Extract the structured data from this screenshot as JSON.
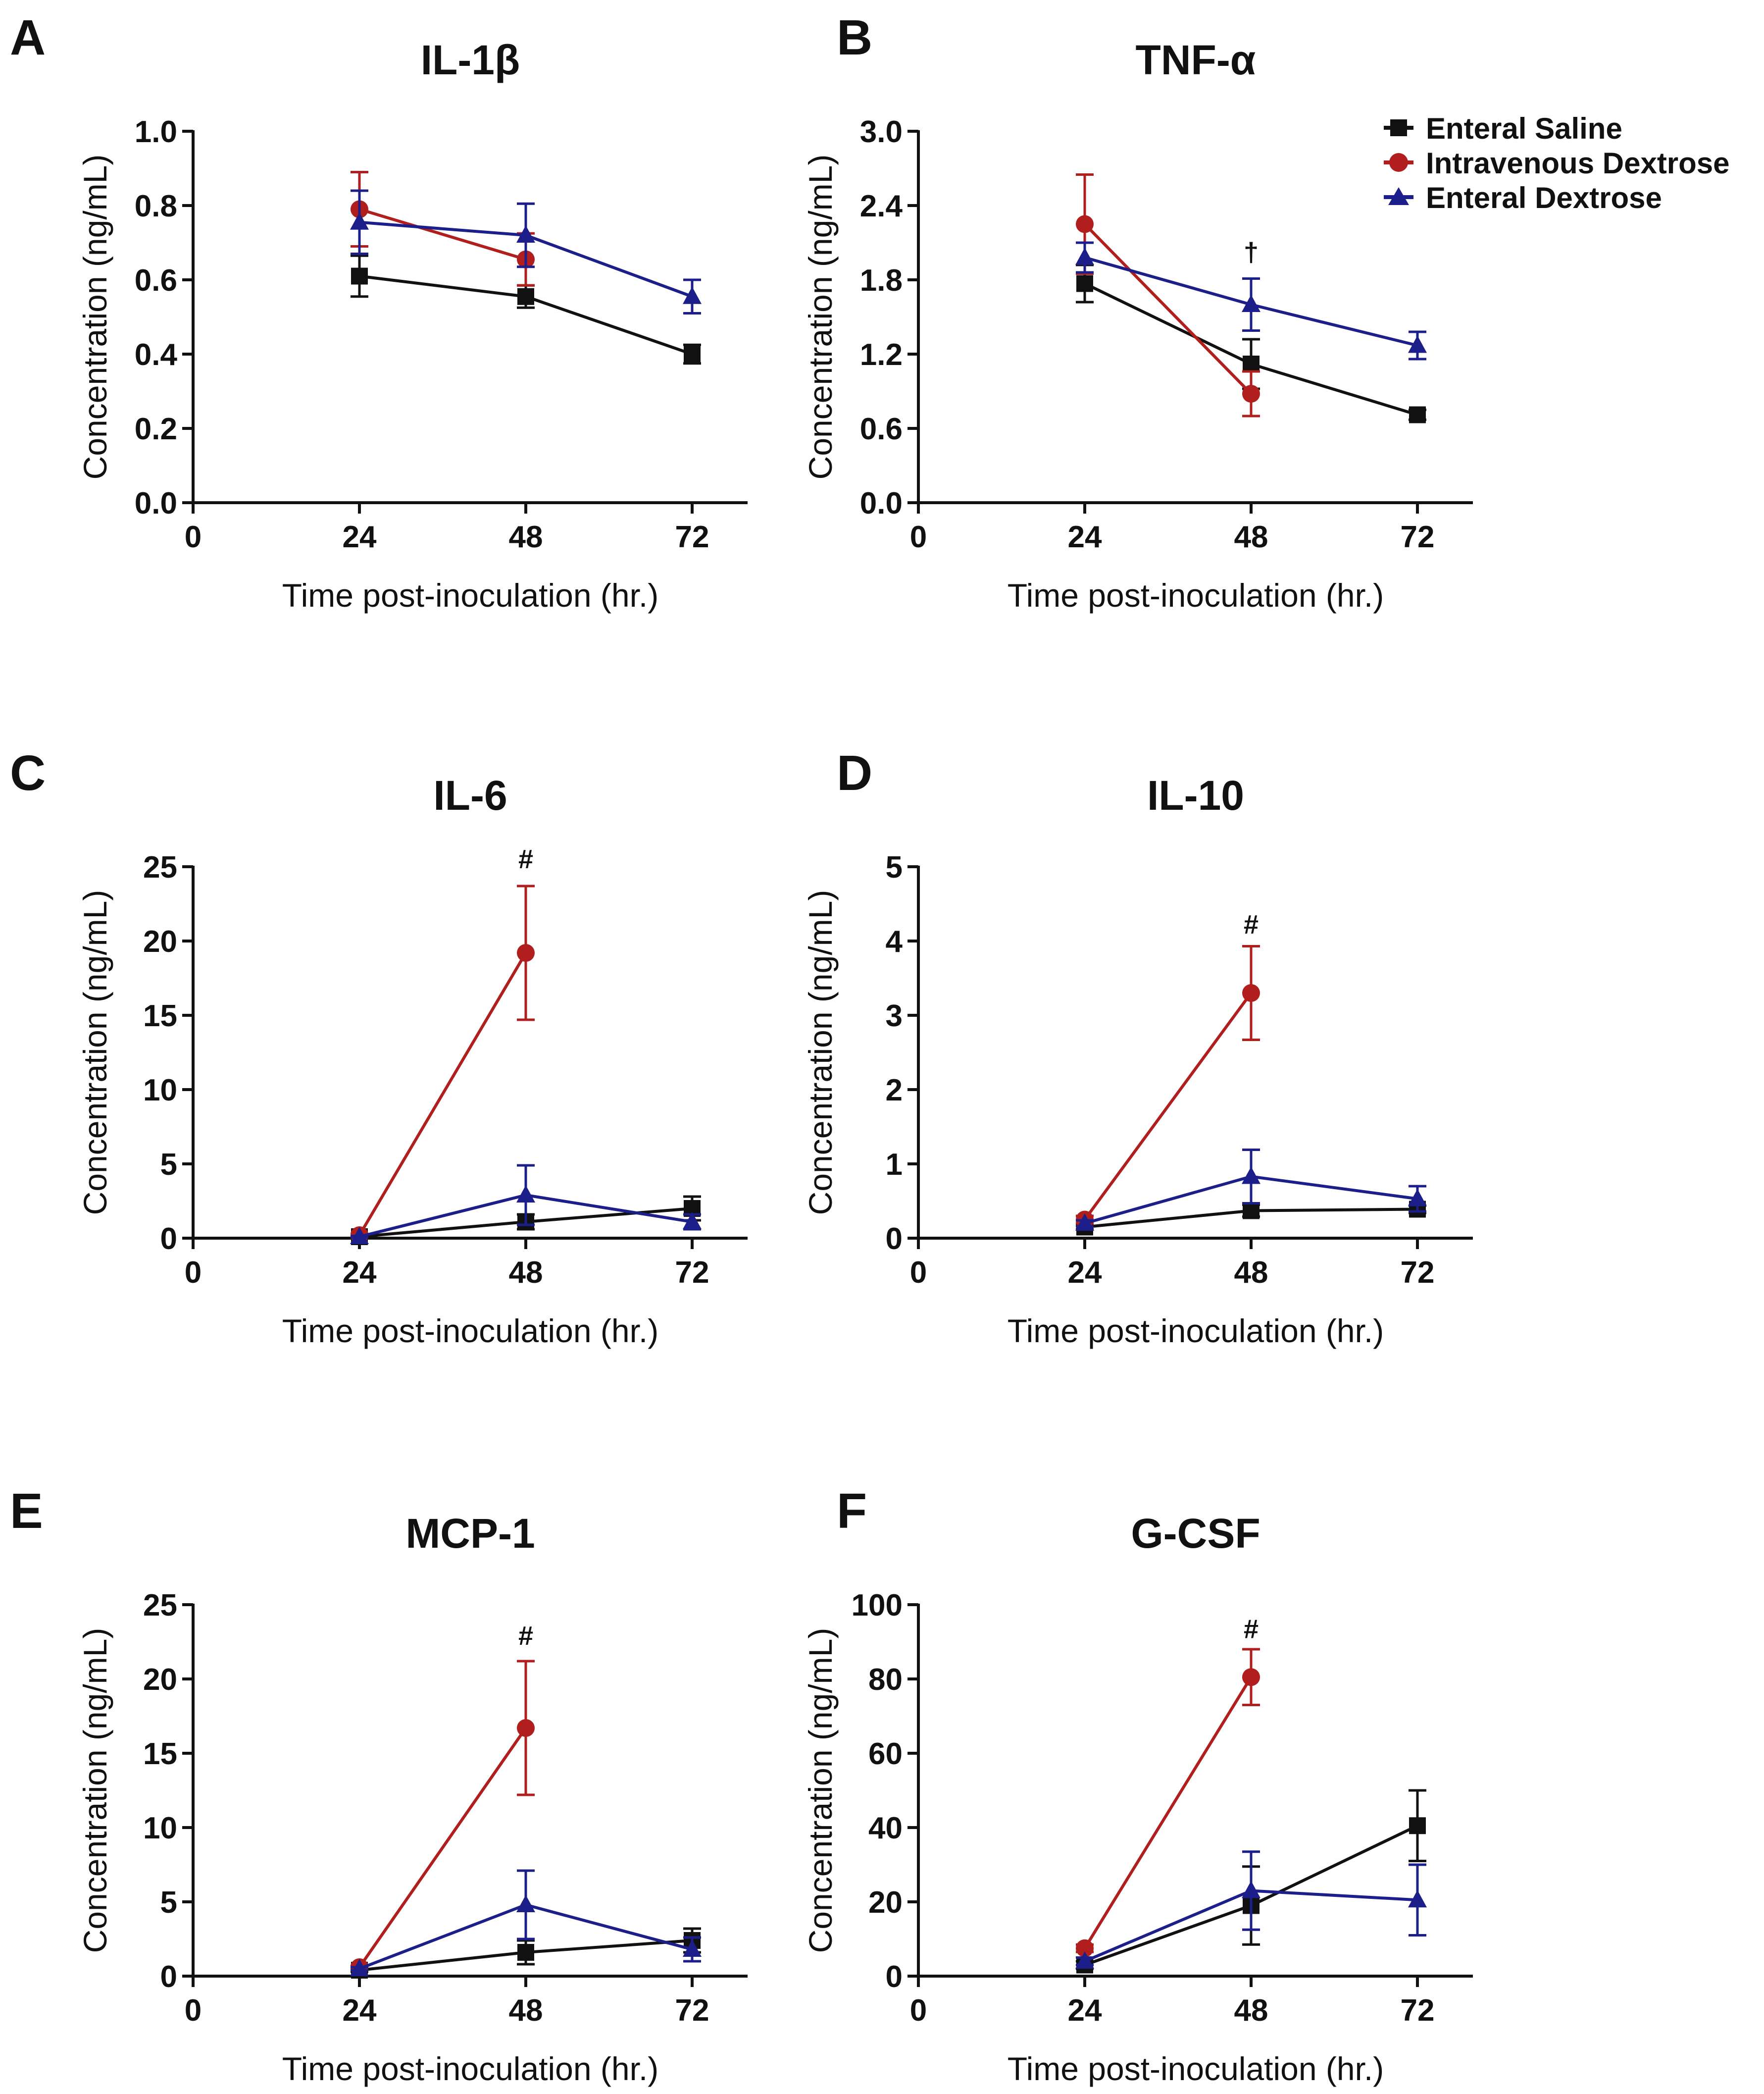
{
  "legend": [
    {
      "name": "Enteral Saline",
      "color": "#111111",
      "marker": "square"
    },
    {
      "name": "Intravenous Dextrose",
      "color": "#b01e1e",
      "marker": "circle"
    },
    {
      "name": "Enteral Dextrose",
      "color": "#1c1f8a",
      "marker": "triangle"
    }
  ],
  "chart_data": [
    {
      "panel": "A",
      "type": "line",
      "title": "IL-1β",
      "xlabel": "Time post-inoculation (hr.)",
      "ylabel": "Concentration (ng/mL)",
      "xlim": [
        0,
        80
      ],
      "xticks": [
        0,
        24,
        48,
        72
      ],
      "ylim": [
        0,
        1.0
      ],
      "yticks": [
        0.0,
        0.2,
        0.4,
        0.6,
        0.8,
        1.0
      ],
      "ytick_labels": [
        "0.0",
        "0.2",
        "0.4",
        "0.6",
        "0.8",
        "1.0"
      ],
      "series": [
        {
          "name": "Enteral Saline",
          "x": [
            24,
            48,
            72
          ],
          "values": [
            0.61,
            0.555,
            0.4
          ],
          "err": [
            0.055,
            0.03,
            0.025
          ]
        },
        {
          "name": "Intravenous Dextrose",
          "x": [
            24,
            48
          ],
          "values": [
            0.79,
            0.655
          ],
          "err": [
            0.1,
            0.07
          ]
        },
        {
          "name": "Enteral Dextrose",
          "x": [
            24,
            48,
            72
          ],
          "values": [
            0.755,
            0.72,
            0.555
          ],
          "err": [
            0.085,
            0.085,
            0.045
          ]
        }
      ],
      "annotations": []
    },
    {
      "panel": "B",
      "type": "line",
      "title": "TNF-α",
      "xlabel": "Time post-inoculation (hr.)",
      "ylabel": "Concentration (ng/mL)",
      "xlim": [
        0,
        80
      ],
      "xticks": [
        0,
        24,
        48,
        72
      ],
      "ylim": [
        0,
        3.0
      ],
      "yticks": [
        0.0,
        0.6,
        1.2,
        1.8,
        2.4,
        3.0
      ],
      "ytick_labels": [
        "0.0",
        "0.6",
        "1.2",
        "1.8",
        "2.4",
        "3.0"
      ],
      "series": [
        {
          "name": "Enteral Saline",
          "x": [
            24,
            48,
            72
          ],
          "values": [
            1.77,
            1.12,
            0.71
          ],
          "err": [
            0.15,
            0.2,
            0.04
          ]
        },
        {
          "name": "Intravenous Dextrose",
          "x": [
            24,
            48
          ],
          "values": [
            2.25,
            0.88
          ],
          "err": [
            0.4,
            0.18
          ]
        },
        {
          "name": "Enteral Dextrose",
          "x": [
            24,
            48,
            72
          ],
          "values": [
            1.98,
            1.6,
            1.27
          ],
          "err": [
            0.12,
            0.21,
            0.11
          ]
        }
      ],
      "annotations": [
        {
          "text": "†",
          "x": 48,
          "y": 1.95
        }
      ]
    },
    {
      "panel": "C",
      "type": "line",
      "title": "IL-6",
      "xlabel": "Time post-inoculation (hr.)",
      "ylabel": "Concentration (ng/mL)",
      "xlim": [
        0,
        80
      ],
      "xticks": [
        0,
        24,
        48,
        72
      ],
      "ylim": [
        0,
        25
      ],
      "yticks": [
        0,
        5,
        10,
        15,
        20,
        25
      ],
      "ytick_labels": [
        "0",
        "5",
        "10",
        "15",
        "20",
        "25"
      ],
      "series": [
        {
          "name": "Enteral Saline",
          "x": [
            24,
            48,
            72
          ],
          "values": [
            0.1,
            1.1,
            2.0
          ],
          "err": [
            0.05,
            0.5,
            0.8
          ]
        },
        {
          "name": "Intravenous Dextrose",
          "x": [
            24,
            48
          ],
          "values": [
            0.2,
            19.2
          ],
          "err": [
            0.1,
            4.5
          ]
        },
        {
          "name": "Enteral Dextrose",
          "x": [
            24,
            48,
            72
          ],
          "values": [
            0.1,
            2.9,
            1.1
          ],
          "err": [
            0.05,
            2.0,
            0.5
          ]
        }
      ],
      "annotations": [
        {
          "text": "#",
          "x": 48,
          "y": 24.9
        }
      ]
    },
    {
      "panel": "D",
      "type": "line",
      "title": "IL-10",
      "xlabel": "Time post-inoculation (hr.)",
      "ylabel": "Concentration (ng/mL)",
      "xlim": [
        0,
        80
      ],
      "xticks": [
        0,
        24,
        48,
        72
      ],
      "ylim": [
        0,
        5
      ],
      "yticks": [
        0,
        1,
        2,
        3,
        4,
        5
      ],
      "ytick_labels": [
        "0",
        "1",
        "2",
        "3",
        "4",
        "5"
      ],
      "series": [
        {
          "name": "Enteral Saline",
          "x": [
            24,
            48,
            72
          ],
          "values": [
            0.15,
            0.37,
            0.39
          ],
          "err": [
            0.03,
            0.08,
            0.05
          ]
        },
        {
          "name": "Intravenous Dextrose",
          "x": [
            24,
            48
          ],
          "values": [
            0.25,
            3.3
          ],
          "err": [
            0.05,
            0.63
          ]
        },
        {
          "name": "Enteral Dextrose",
          "x": [
            24,
            48,
            72
          ],
          "values": [
            0.2,
            0.83,
            0.53
          ],
          "err": [
            0.04,
            0.36,
            0.17
          ]
        }
      ],
      "annotations": [
        {
          "text": "#",
          "x": 48,
          "y": 4.1
        }
      ]
    },
    {
      "panel": "E",
      "type": "line",
      "title": "MCP-1",
      "xlabel": "Time post-inoculation (hr.)",
      "ylabel": "Concentration (ng/mL)",
      "xlim": [
        0,
        80
      ],
      "xticks": [
        0,
        24,
        48,
        72
      ],
      "ylim": [
        0,
        25
      ],
      "yticks": [
        0,
        5,
        10,
        15,
        20,
        25
      ],
      "ytick_labels": [
        "0",
        "5",
        "10",
        "15",
        "20",
        "25"
      ],
      "series": [
        {
          "name": "Enteral Saline",
          "x": [
            24,
            48,
            72
          ],
          "values": [
            0.4,
            1.6,
            2.4
          ],
          "err": [
            0.1,
            0.8,
            0.8
          ]
        },
        {
          "name": "Intravenous Dextrose",
          "x": [
            24,
            48
          ],
          "values": [
            0.6,
            16.7
          ],
          "err": [
            0.1,
            4.5
          ]
        },
        {
          "name": "Enteral Dextrose",
          "x": [
            24,
            48,
            72
          ],
          "values": [
            0.5,
            4.8,
            1.8
          ],
          "err": [
            0.1,
            2.3,
            0.8
          ]
        }
      ],
      "annotations": [
        {
          "text": "#",
          "x": 48,
          "y": 22.3
        }
      ]
    },
    {
      "panel": "F",
      "type": "line",
      "title": "G-CSF",
      "xlabel": "Time post-inoculation (hr.)",
      "ylabel": "Concentration (ng/mL)",
      "xlim": [
        0,
        80
      ],
      "xticks": [
        0,
        24,
        48,
        72
      ],
      "ylim": [
        0,
        100
      ],
      "yticks": [
        0,
        20,
        40,
        60,
        80,
        100
      ],
      "ytick_labels": [
        "0",
        "20",
        "40",
        "60",
        "80",
        "100"
      ],
      "series": [
        {
          "name": "Enteral Saline",
          "x": [
            24,
            48,
            72
          ],
          "values": [
            3.0,
            19.0,
            40.5
          ],
          "err": [
            1.0,
            10.5,
            9.5
          ]
        },
        {
          "name": "Intravenous Dextrose",
          "x": [
            24,
            48
          ],
          "values": [
            7.5,
            80.5
          ],
          "err": [
            1.0,
            7.5
          ]
        },
        {
          "name": "Enteral Dextrose",
          "x": [
            24,
            48,
            72
          ],
          "values": [
            4.0,
            23.0,
            20.5
          ],
          "err": [
            1.0,
            10.5,
            9.5
          ]
        }
      ],
      "annotations": [
        {
          "text": "#",
          "x": 48,
          "y": 91
        }
      ]
    }
  ]
}
